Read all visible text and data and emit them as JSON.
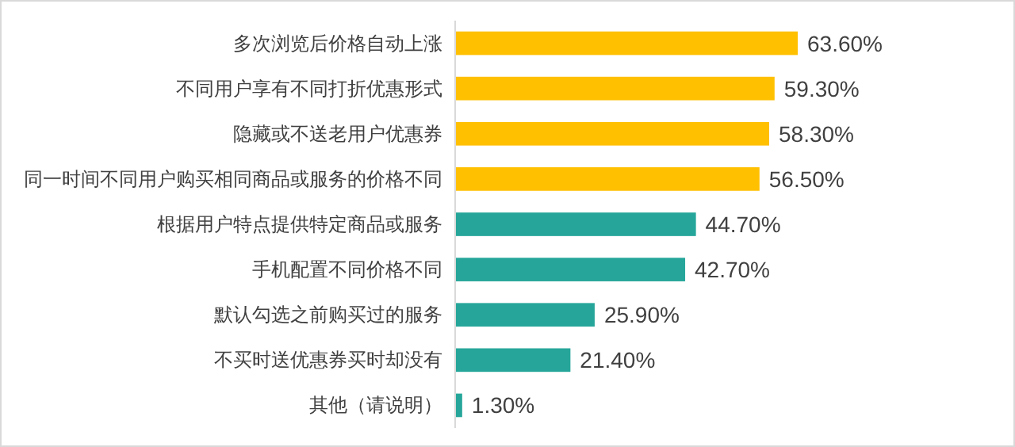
{
  "chart_data": {
    "type": "bar",
    "orientation": "horizontal",
    "categories": [
      "多次浏览后价格自动上涨",
      "不同用户享有不同打折优惠形式",
      "隐藏或不送老用户优惠券",
      "同一时间不同用户购买相同商品或服务的价格不同",
      "根据用户特点提供特定商品或服务",
      "手机配置不同价格不同",
      "默认勾选之前购买过的服务",
      "不买时送优惠券买时却没有",
      "其他（请说明）"
    ],
    "values": [
      63.6,
      59.3,
      58.3,
      56.5,
      44.7,
      42.7,
      25.9,
      21.4,
      1.3
    ],
    "colors": [
      "#ffc000",
      "#ffc000",
      "#ffc000",
      "#ffc000",
      "#26a69a",
      "#26a69a",
      "#26a69a",
      "#26a69a",
      "#26a69a"
    ],
    "value_labels": [
      "63.60%",
      "59.30%",
      "58.30%",
      "56.50%",
      "44.70%",
      "42.70%",
      "25.90%",
      "21.40%",
      "1.30%"
    ]
  }
}
